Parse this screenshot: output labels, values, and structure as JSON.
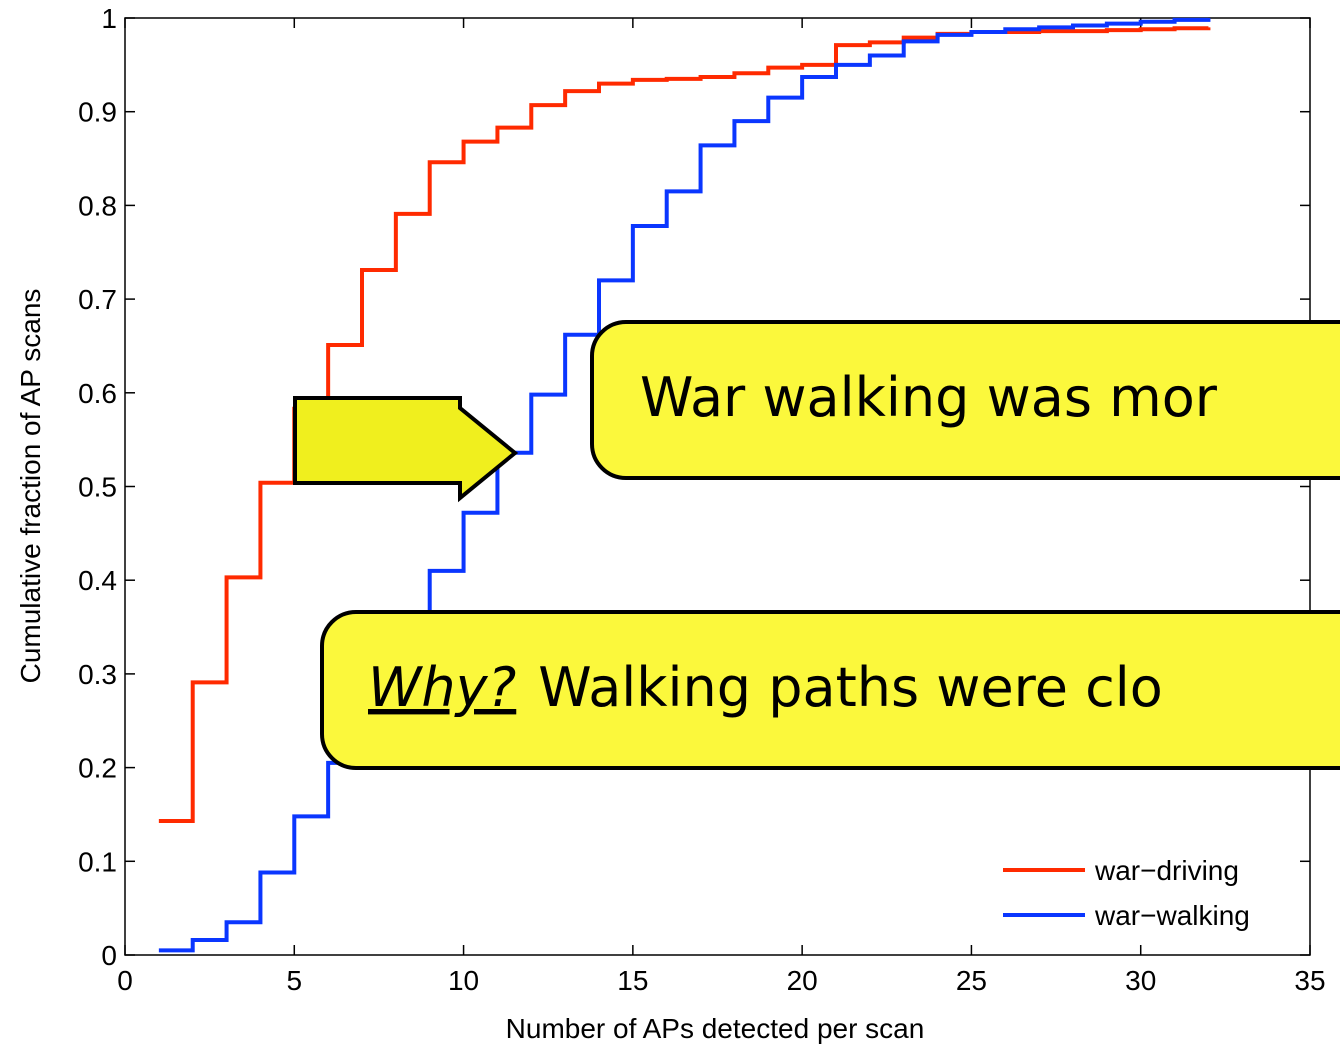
{
  "chart_data": {
    "type": "stairs",
    "xlabel": "Number of APs detected per scan",
    "ylabel": "Cumulative fraction of AP scans",
    "x": [
      1,
      2,
      3,
      4,
      5,
      6,
      7,
      8,
      9,
      10,
      11,
      12,
      13,
      14,
      15,
      16,
      17,
      18,
      19,
      20,
      21,
      22,
      23,
      24,
      25,
      26,
      27,
      28,
      29,
      30,
      31,
      32
    ],
    "series": [
      {
        "name": "war−driving",
        "color": "#ff2a00",
        "values": [
          0.143,
          0.291,
          0.403,
          0.504,
          0.583,
          0.651,
          0.731,
          0.791,
          0.846,
          0.868,
          0.883,
          0.907,
          0.922,
          0.93,
          0.934,
          0.935,
          0.937,
          0.941,
          0.947,
          0.95,
          0.971,
          0.974,
          0.979,
          0.983,
          0.985,
          0.985,
          0.986,
          0.986,
          0.987,
          0.988,
          0.989,
          0.99
        ]
      },
      {
        "name": "war−walking",
        "color": "#0a36ff",
        "values": [
          0.005,
          0.016,
          0.035,
          0.088,
          0.148,
          0.205,
          0.26,
          0.33,
          0.41,
          0.472,
          0.536,
          0.598,
          0.662,
          0.72,
          0.778,
          0.815,
          0.864,
          0.89,
          0.915,
          0.937,
          0.95,
          0.96,
          0.975,
          0.982,
          0.985,
          0.988,
          0.99,
          0.992,
          0.994,
          0.996,
          0.998,
          1
        ]
      }
    ],
    "xlim": [
      0,
      35
    ],
    "xticks": [
      0,
      5,
      10,
      15,
      20,
      25,
      30,
      35
    ],
    "ylim": [
      0,
      1
    ],
    "yticks": [
      0,
      0.1,
      0.2,
      0.3,
      0.4,
      0.5,
      0.6,
      0.7,
      0.8,
      0.9,
      1
    ],
    "legend": "lower right",
    "annotations": [
      "War walking was mor",
      {
        "emphasis": "Why?",
        "text": "Walking paths were clo"
      }
    ]
  }
}
